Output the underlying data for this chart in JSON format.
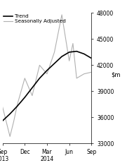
{
  "ylim": [
    33000,
    48000
  ],
  "yticks": [
    33000,
    36000,
    39000,
    42000,
    45000,
    48000
  ],
  "xtick_labels": [
    "Sep\n2013",
    "Dec",
    "Mar\n2014",
    "Jun",
    "Sep"
  ],
  "xtick_positions": [
    0,
    3,
    6,
    9,
    12
  ],
  "trend_x": [
    0,
    1,
    2,
    3,
    4,
    5,
    6,
    7,
    8,
    9,
    10,
    11,
    12
  ],
  "trend_y": [
    35600,
    36400,
    37300,
    38300,
    39400,
    40500,
    41400,
    42200,
    43000,
    43500,
    43600,
    43300,
    42800
  ],
  "seas_adj_x": [
    0,
    0.5,
    1,
    1.5,
    2,
    3,
    4,
    5,
    6,
    7,
    8,
    9,
    9.5,
    10,
    11,
    12
  ],
  "seas_adj_y": [
    37200,
    35500,
    33800,
    35500,
    37500,
    40500,
    38500,
    42000,
    41000,
    43500,
    47800,
    42500,
    44500,
    40500,
    41000,
    41200
  ],
  "trend_color": "#000000",
  "seas_adj_color": "#b0b0b0",
  "background_color": "#ffffff",
  "legend_label_trend": "Trend",
  "legend_label_seas": "Seasonally Adjusted",
  "trend_linewidth": 1.2,
  "seas_linewidth": 0.8,
  "trend_linestyle": "solid",
  "xlim": [
    0,
    12
  ]
}
